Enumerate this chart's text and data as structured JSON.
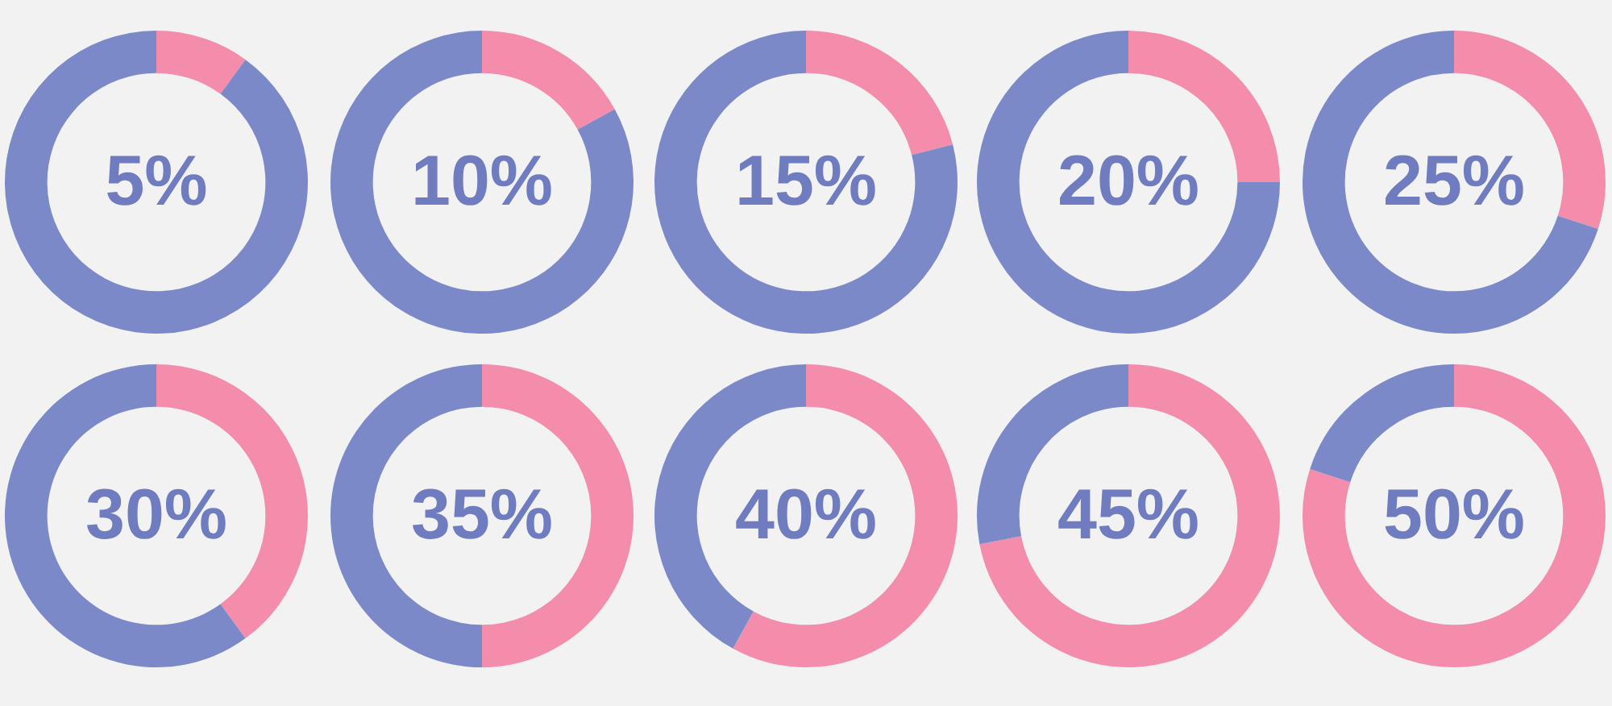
{
  "chart_data": [
    {
      "type": "donut",
      "title": "5%",
      "categories": [
        null,
        null
      ],
      "values": [
        10,
        90
      ],
      "colors": [
        "#f48cac",
        "#7b89c8"
      ]
    },
    {
      "type": "donut",
      "title": "10%",
      "categories": [
        null,
        null
      ],
      "values": [
        17,
        83
      ],
      "colors": [
        "#f48cac",
        "#7b89c8"
      ]
    },
    {
      "type": "donut",
      "title": "15%",
      "categories": [
        null,
        null
      ],
      "values": [
        21,
        79
      ],
      "colors": [
        "#f48cac",
        "#7b89c8"
      ]
    },
    {
      "type": "donut",
      "title": "20%",
      "categories": [
        null,
        null
      ],
      "values": [
        25,
        75
      ],
      "colors": [
        "#f48cac",
        "#7b89c8"
      ]
    },
    {
      "type": "donut",
      "title": "25%",
      "categories": [
        null,
        null
      ],
      "values": [
        30,
        70
      ],
      "colors": [
        "#f48cac",
        "#7b89c8"
      ]
    },
    {
      "type": "donut",
      "title": "30%",
      "categories": [
        null,
        null
      ],
      "values": [
        40,
        60
      ],
      "colors": [
        "#f48cac",
        "#7b89c8"
      ]
    },
    {
      "type": "donut",
      "title": "35%",
      "categories": [
        null,
        null
      ],
      "values": [
        50,
        50
      ],
      "colors": [
        "#f48cac",
        "#7b89c8"
      ]
    },
    {
      "type": "donut",
      "title": "40%",
      "categories": [
        null,
        null
      ],
      "values": [
        58,
        42
      ],
      "colors": [
        "#f48cac",
        "#7b89c8"
      ]
    },
    {
      "type": "donut",
      "title": "45%",
      "categories": [
        null,
        null
      ],
      "values": [
        72,
        28
      ],
      "colors": [
        "#f48cac",
        "#7b89c8"
      ]
    },
    {
      "type": "donut",
      "title": "50%",
      "categories": [
        null,
        null
      ],
      "values": [
        80,
        20
      ],
      "colors": [
        "#f48cac",
        "#7b89c8"
      ]
    }
  ]
}
